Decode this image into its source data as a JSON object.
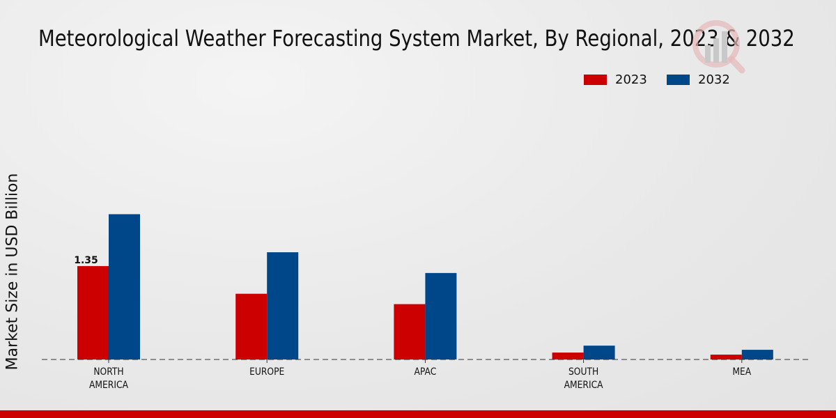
{
  "chart_data": {
    "type": "bar",
    "title": "Meteorological Weather Forecasting System Market, By Regional, 2023 & 2032",
    "xlabel": "",
    "ylabel": "Market Size in USD Billion",
    "categories": [
      "NORTH\nAMERICA",
      "EUROPE",
      "APAC",
      "SOUTH\nAMERICA",
      "MEA"
    ],
    "series": [
      {
        "name": "2023",
        "color": "#cc0000",
        "values": [
          1.35,
          0.95,
          0.8,
          0.1,
          0.07
        ]
      },
      {
        "name": "2032",
        "color": "#00478a",
        "values": [
          2.1,
          1.55,
          1.25,
          0.2,
          0.14
        ]
      }
    ],
    "data_labels": [
      {
        "series": "2023",
        "category_index": 0,
        "text": "1.35"
      }
    ],
    "ylim": [
      0,
      2.4
    ],
    "grid": false,
    "legend_position": "top-right"
  }
}
